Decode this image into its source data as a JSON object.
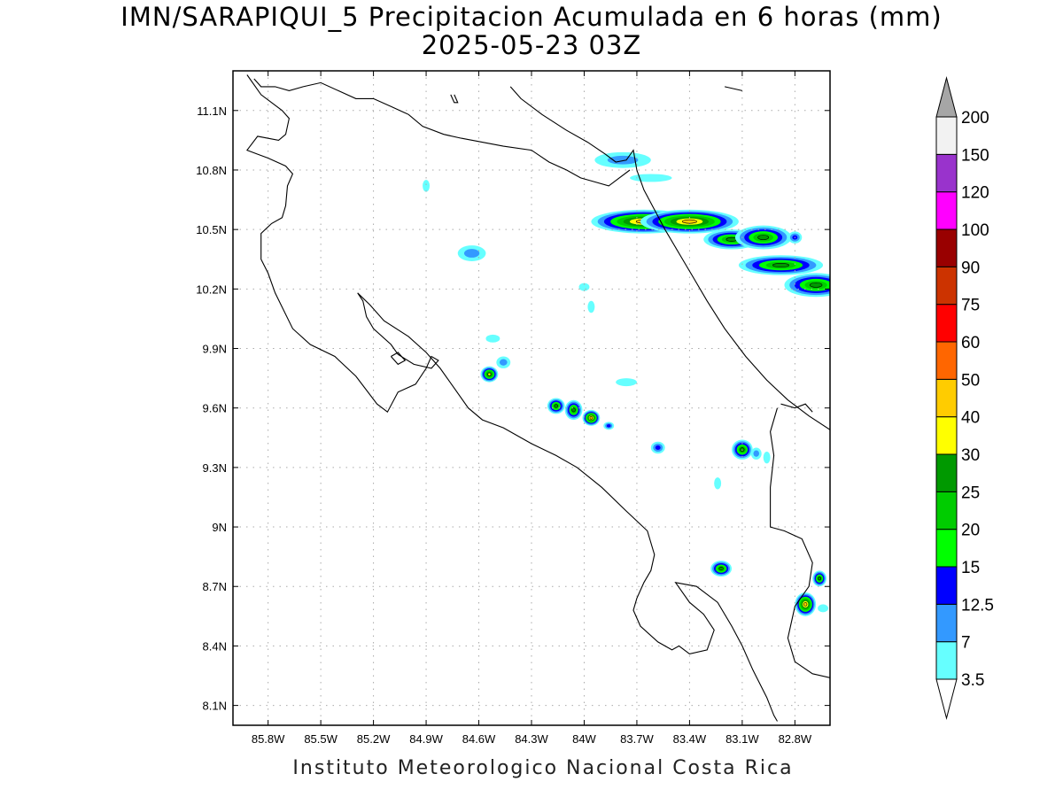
{
  "title": {
    "line1": "IMN/SARAPIQUI_5 Precipitacion Acumulada en 6 horas (mm)",
    "line2": "2025-05-23 03Z"
  },
  "footer": "Instituto Meteorologico Nacional Costa Rica",
  "map": {
    "lon_range": [
      -86.0,
      -82.6
    ],
    "lat_range": [
      8.0,
      11.3
    ],
    "grid": true,
    "lon_ticks": [
      {
        "lon": -85.8,
        "label": "85.8W"
      },
      {
        "lon": -85.5,
        "label": "85.5W"
      },
      {
        "lon": -85.2,
        "label": "85.2W"
      },
      {
        "lon": -84.9,
        "label": "84.9W"
      },
      {
        "lon": -84.6,
        "label": "84.6W"
      },
      {
        "lon": -84.3,
        "label": "84.3W"
      },
      {
        "lon": -84.0,
        "label": "84W"
      },
      {
        "lon": -83.7,
        "label": "83.7W"
      },
      {
        "lon": -83.4,
        "label": "83.4W"
      },
      {
        "lon": -83.1,
        "label": "83.1W"
      },
      {
        "lon": -82.8,
        "label": "82.8W"
      }
    ],
    "lat_ticks": [
      {
        "lat": 11.1,
        "label": "11.1N"
      },
      {
        "lat": 10.8,
        "label": "10.8N"
      },
      {
        "lat": 10.5,
        "label": "10.5N"
      },
      {
        "lat": 10.2,
        "label": "10.2N"
      },
      {
        "lat": 9.9,
        "label": "9.9N"
      },
      {
        "lat": 9.6,
        "label": "9.6N"
      },
      {
        "lat": 9.3,
        "label": "9.3N"
      },
      {
        "lat": 9.0,
        "label": "9N"
      },
      {
        "lat": 8.7,
        "label": "8.7N"
      },
      {
        "lat": 8.4,
        "label": "8.4N"
      },
      {
        "lat": 8.1,
        "label": "8.1N"
      }
    ],
    "coastlines": [
      [
        [
          -85.92,
          11.28
        ],
        [
          -85.84,
          11.18
        ],
        [
          -85.72,
          11.1
        ],
        [
          -85.68,
          11.06
        ],
        [
          -85.7,
          10.98
        ],
        [
          -85.74,
          10.95
        ],
        [
          -85.86,
          10.97
        ],
        [
          -85.92,
          10.9
        ],
        [
          -85.86,
          10.88
        ],
        [
          -85.8,
          10.86
        ],
        [
          -85.7,
          10.82
        ],
        [
          -85.66,
          10.78
        ],
        [
          -85.69,
          10.72
        ],
        [
          -85.7,
          10.62
        ],
        [
          -85.72,
          10.56
        ],
        [
          -85.78,
          10.53
        ],
        [
          -85.84,
          10.48
        ],
        [
          -85.84,
          10.35
        ],
        [
          -85.8,
          10.28
        ],
        [
          -85.76,
          10.18
        ],
        [
          -85.66,
          10.0
        ],
        [
          -85.56,
          9.92
        ],
        [
          -85.42,
          9.86
        ],
        [
          -85.3,
          9.76
        ],
        [
          -85.18,
          9.62
        ],
        [
          -85.12,
          9.58
        ],
        [
          -85.06,
          9.68
        ],
        [
          -84.96,
          9.72
        ],
        [
          -84.9,
          9.8
        ],
        [
          -84.87,
          9.86
        ],
        [
          -84.83,
          9.84
        ],
        [
          -84.87,
          9.8
        ],
        [
          -84.97,
          9.82
        ],
        [
          -85.06,
          9.87
        ],
        [
          -85.1,
          9.92
        ],
        [
          -85.2,
          10.0
        ],
        [
          -85.24,
          10.06
        ],
        [
          -85.26,
          10.14
        ],
        [
          -85.29,
          10.18
        ],
        [
          -85.22,
          10.12
        ],
        [
          -85.14,
          10.04
        ],
        [
          -85.0,
          9.96
        ],
        [
          -84.9,
          9.88
        ],
        [
          -84.82,
          9.8
        ],
        [
          -84.74,
          9.7
        ],
        [
          -84.66,
          9.6
        ],
        [
          -84.58,
          9.54
        ],
        [
          -84.46,
          9.5
        ],
        [
          -84.3,
          9.42
        ],
        [
          -84.16,
          9.36
        ],
        [
          -84.04,
          9.3
        ],
        [
          -83.9,
          9.2
        ],
        [
          -83.76,
          9.08
        ],
        [
          -83.64,
          8.98
        ],
        [
          -83.6,
          8.86
        ],
        [
          -83.62,
          8.78
        ],
        [
          -83.66,
          8.72
        ],
        [
          -83.7,
          8.64
        ],
        [
          -83.72,
          8.58
        ],
        [
          -83.68,
          8.5
        ],
        [
          -83.58,
          8.42
        ],
        [
          -83.5,
          8.38
        ],
        [
          -83.46,
          8.4
        ],
        [
          -83.4,
          8.36
        ],
        [
          -83.3,
          8.38
        ],
        [
          -83.26,
          8.48
        ],
        [
          -83.32,
          8.56
        ],
        [
          -83.4,
          8.62
        ],
        [
          -83.48,
          8.72
        ],
        [
          -83.36,
          8.7
        ],
        [
          -83.24,
          8.62
        ],
        [
          -83.16,
          8.5
        ],
        [
          -83.1,
          8.4
        ],
        [
          -83.04,
          8.28
        ],
        [
          -82.96,
          8.14
        ],
        [
          -82.92,
          8.05
        ],
        [
          -82.9,
          8.02
        ]
      ],
      [
        [
          -84.42,
          11.22
        ],
        [
          -84.36,
          11.16
        ],
        [
          -84.24,
          11.08
        ],
        [
          -84.1,
          11.0
        ],
        [
          -83.98,
          10.94
        ],
        [
          -83.88,
          10.88
        ],
        [
          -83.82,
          10.84
        ],
        [
          -83.76,
          10.85
        ],
        [
          -83.72,
          10.9
        ],
        [
          -83.7,
          10.8
        ],
        [
          -83.66,
          10.7
        ],
        [
          -83.6,
          10.6
        ],
        [
          -83.54,
          10.5
        ],
        [
          -83.46,
          10.38
        ],
        [
          -83.38,
          10.26
        ],
        [
          -83.3,
          10.14
        ],
        [
          -83.2,
          10.0
        ],
        [
          -83.08,
          9.86
        ],
        [
          -82.96,
          9.74
        ],
        [
          -82.84,
          9.64
        ],
        [
          -82.72,
          9.56
        ],
        [
          -82.6,
          9.49
        ]
      ],
      [
        [
          -85.88,
          11.26
        ],
        [
          -85.84,
          11.22
        ],
        [
          -85.76,
          11.22
        ],
        [
          -85.68,
          11.2
        ],
        [
          -85.6,
          11.22
        ],
        [
          -85.5,
          11.24
        ],
        [
          -85.4,
          11.2
        ],
        [
          -85.3,
          11.16
        ],
        [
          -85.2,
          11.16
        ],
        [
          -85.1,
          11.12
        ],
        [
          -85.0,
          11.08
        ],
        [
          -84.92,
          11.02
        ],
        [
          -84.8,
          10.98
        ],
        [
          -84.7,
          10.96
        ],
        [
          -84.58,
          10.94
        ],
        [
          -84.46,
          10.92
        ],
        [
          -84.3,
          10.9
        ],
        [
          -84.2,
          10.84
        ],
        [
          -84.1,
          10.8
        ],
        [
          -84.02,
          10.76
        ],
        [
          -83.94,
          10.74
        ],
        [
          -83.86,
          10.72
        ],
        [
          -83.8,
          10.76
        ],
        [
          -83.74,
          10.8
        ]
      ],
      [
        [
          -83.2,
          11.22
        ],
        [
          -83.1,
          11.2
        ]
      ],
      [
        [
          -82.88,
          9.62
        ],
        [
          -82.8,
          9.6
        ],
        [
          -82.74,
          9.62
        ],
        [
          -82.7,
          9.58
        ]
      ],
      [
        [
          -82.9,
          9.6
        ],
        [
          -82.94,
          9.48
        ],
        [
          -82.92,
          9.36
        ],
        [
          -82.94,
          9.2
        ],
        [
          -82.94,
          9.0
        ],
        [
          -82.86,
          8.98
        ],
        [
          -82.76,
          8.94
        ],
        [
          -82.7,
          8.82
        ],
        [
          -82.72,
          8.7
        ],
        [
          -82.8,
          8.6
        ],
        [
          -82.84,
          8.44
        ],
        [
          -82.8,
          8.32
        ],
        [
          -82.7,
          8.26
        ],
        [
          -82.6,
          8.24
        ]
      ],
      [
        [
          -84.76,
          11.18
        ],
        [
          -84.74,
          11.14
        ],
        [
          -84.72,
          11.14
        ],
        [
          -84.74,
          11.18
        ]
      ],
      [
        [
          -85.1,
          9.86
        ],
        [
          -85.06,
          9.82
        ],
        [
          -85.02,
          9.84
        ],
        [
          -85.06,
          9.88
        ],
        [
          -85.1,
          9.86
        ]
      ]
    ],
    "precip_cells": [
      {
        "lon": -83.78,
        "lat": 10.85,
        "rx": 0.16,
        "ry": 0.04,
        "peak": "7"
      },
      {
        "lon": -83.62,
        "lat": 10.76,
        "rx": 0.12,
        "ry": 0.02,
        "peak": "3.5"
      },
      {
        "lon": -83.66,
        "lat": 10.54,
        "rx": 0.3,
        "ry": 0.06,
        "peak": "40"
      },
      {
        "lon": -83.4,
        "lat": 10.54,
        "rx": 0.28,
        "ry": 0.06,
        "peak": "40"
      },
      {
        "lon": -83.16,
        "lat": 10.45,
        "rx": 0.16,
        "ry": 0.05,
        "peak": "25"
      },
      {
        "lon": -82.98,
        "lat": 10.46,
        "rx": 0.16,
        "ry": 0.06,
        "peak": "25"
      },
      {
        "lon": -82.88,
        "lat": 10.32,
        "rx": 0.24,
        "ry": 0.05,
        "peak": "25"
      },
      {
        "lon": -82.68,
        "lat": 10.22,
        "rx": 0.18,
        "ry": 0.06,
        "peak": "25"
      },
      {
        "lon": -82.8,
        "lat": 10.46,
        "rx": 0.04,
        "ry": 0.03,
        "peak": "12.5"
      },
      {
        "lon": -84.64,
        "lat": 10.38,
        "rx": 0.08,
        "ry": 0.04,
        "peak": "7"
      },
      {
        "lon": -84.54,
        "lat": 9.77,
        "rx": 0.05,
        "ry": 0.04,
        "peak": "30"
      },
      {
        "lon": -84.46,
        "lat": 9.83,
        "rx": 0.04,
        "ry": 0.03,
        "peak": "7"
      },
      {
        "lon": -84.52,
        "lat": 9.95,
        "rx": 0.04,
        "ry": 0.02,
        "peak": "3.5"
      },
      {
        "lon": -84.16,
        "lat": 9.61,
        "rx": 0.05,
        "ry": 0.04,
        "peak": "25"
      },
      {
        "lon": -84.06,
        "lat": 9.59,
        "rx": 0.05,
        "ry": 0.05,
        "peak": "25"
      },
      {
        "lon": -83.96,
        "lat": 9.55,
        "rx": 0.05,
        "ry": 0.04,
        "peak": "40"
      },
      {
        "lon": -83.86,
        "lat": 9.51,
        "rx": 0.03,
        "ry": 0.02,
        "peak": "12.5"
      },
      {
        "lon": -83.58,
        "lat": 9.4,
        "rx": 0.04,
        "ry": 0.03,
        "peak": "12.5"
      },
      {
        "lon": -83.1,
        "lat": 9.39,
        "rx": 0.06,
        "ry": 0.05,
        "peak": "25"
      },
      {
        "lon": -83.02,
        "lat": 9.37,
        "rx": 0.03,
        "ry": 0.03,
        "peak": "7"
      },
      {
        "lon": -83.22,
        "lat": 8.79,
        "rx": 0.06,
        "ry": 0.04,
        "peak": "25"
      },
      {
        "lon": -82.74,
        "lat": 8.61,
        "rx": 0.06,
        "ry": 0.06,
        "peak": "40"
      },
      {
        "lon": -82.66,
        "lat": 8.74,
        "rx": 0.04,
        "ry": 0.04,
        "peak": "25"
      },
      {
        "lon": -82.64,
        "lat": 8.59,
        "rx": 0.03,
        "ry": 0.02,
        "peak": "3.5"
      },
      {
        "lon": -83.76,
        "lat": 9.73,
        "rx": 0.06,
        "ry": 0.02,
        "peak": "3.5"
      },
      {
        "lon": -84.0,
        "lat": 10.21,
        "rx": 0.03,
        "ry": 0.02,
        "peak": "3.5"
      },
      {
        "lon": -83.96,
        "lat": 10.11,
        "rx": 0.02,
        "ry": 0.03,
        "peak": "3.5"
      },
      {
        "lon": -84.9,
        "lat": 10.72,
        "rx": 0.02,
        "ry": 0.03,
        "peak": "3.5"
      },
      {
        "lon": -83.24,
        "lat": 9.22,
        "rx": 0.02,
        "ry": 0.03,
        "peak": "3.5"
      },
      {
        "lon": -82.96,
        "lat": 9.35,
        "rx": 0.02,
        "ry": 0.03,
        "peak": "3.5"
      }
    ]
  },
  "colorbar": {
    "levels": [
      {
        "label": "3.5",
        "color": "#66ffff"
      },
      {
        "label": "7",
        "color": "#3399ff"
      },
      {
        "label": "12.5",
        "color": "#0000ff"
      },
      {
        "label": "15",
        "color": "#00ff00"
      },
      {
        "label": "20",
        "color": "#00cc00"
      },
      {
        "label": "25",
        "color": "#009900"
      },
      {
        "label": "30",
        "color": "#ffff00"
      },
      {
        "label": "40",
        "color": "#ffcc00"
      },
      {
        "label": "50",
        "color": "#ff6600"
      },
      {
        "label": "60",
        "color": "#ff0000"
      },
      {
        "label": "75",
        "color": "#cc3300"
      },
      {
        "label": "90",
        "color": "#990000"
      },
      {
        "label": "100",
        "color": "#ff00ff"
      },
      {
        "label": "120",
        "color": "#9933cc"
      },
      {
        "label": "150",
        "color": "#f2f2f2"
      },
      {
        "label": "200",
        "color": "#a6a6a6"
      }
    ],
    "under_color": "#ffffff",
    "over_color": "#a6a6a6"
  }
}
